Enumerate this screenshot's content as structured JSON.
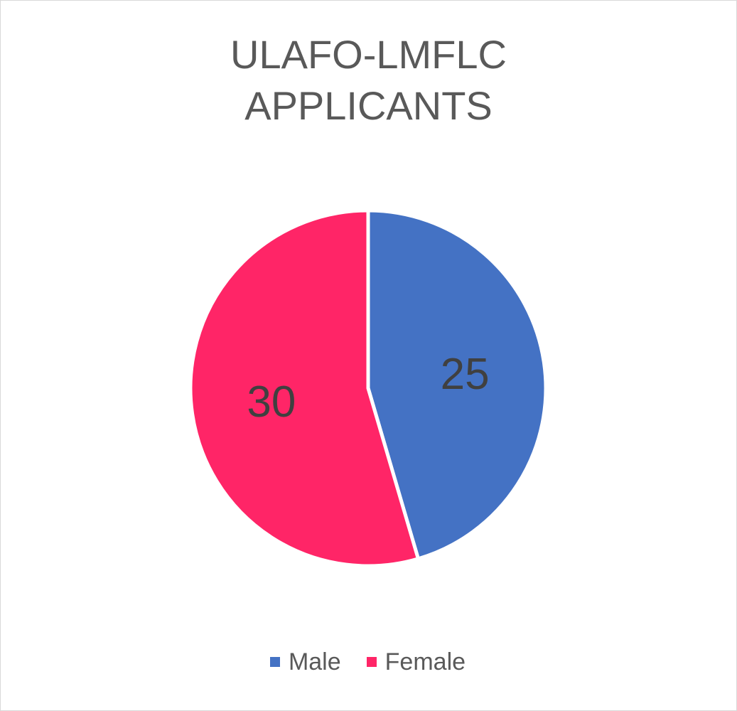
{
  "chart_data": {
    "type": "pie",
    "title": [
      "ULAFO-LMFLC",
      "APPLICANTS"
    ],
    "categories": [
      "Male",
      "Female"
    ],
    "values": [
      25,
      30
    ],
    "colors": [
      "#4472c4",
      "#ff2567"
    ],
    "data_labels": [
      "25",
      "30"
    ],
    "legend_position": "bottom"
  }
}
